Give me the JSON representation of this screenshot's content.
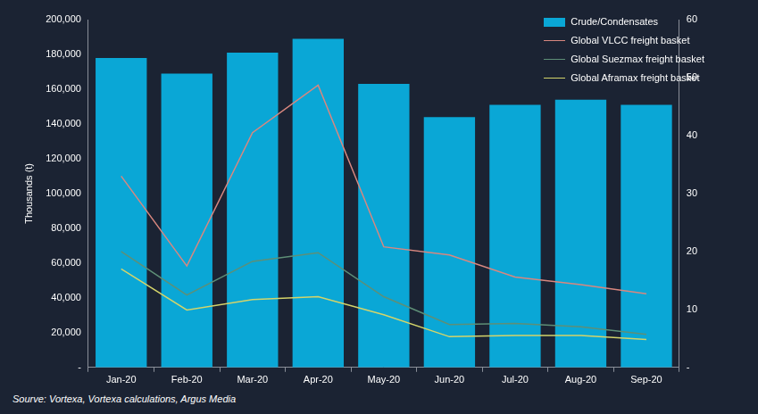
{
  "chart_data": {
    "type": "bar",
    "source": "Sourve: Vortexa, Vortexa calculations, Argus Media",
    "y_label": "Thousands (t)",
    "categories": [
      "Jan-20",
      "Feb-20",
      "Mar-20",
      "Apr-20",
      "May-20",
      "Jun-20",
      "Jul-20",
      "Aug-20",
      "Sep-20"
    ],
    "series": [
      {
        "name": "Crude/Condensates",
        "type": "bar",
        "color": "#0aa7d6",
        "values": [
          178000,
          169000,
          181000,
          189000,
          163000,
          144000,
          151000,
          154000,
          151000
        ]
      },
      {
        "name": "Global VLCC freight basket",
        "type": "line",
        "axis": "y2",
        "color": "#d9877f",
        "values": [
          33,
          17.5,
          40.5,
          48.7,
          20.8,
          19.4,
          15.6,
          14.3,
          12.7
        ]
      },
      {
        "name": "Global Suezmax freight basket",
        "type": "line",
        "axis": "y2",
        "color": "#5e8f77",
        "values": [
          20,
          12.5,
          18.3,
          19.8,
          12.2,
          7.4,
          7.6,
          7,
          5.7
        ]
      },
      {
        "name": "Global Aframax freight basket",
        "type": "line",
        "axis": "y2",
        "color": "#d4d46a",
        "values": [
          17,
          9.9,
          11.7,
          12.2,
          9.1,
          5.3,
          5.5,
          5.5,
          4.8
        ]
      }
    ],
    "ylim": [
      0,
      200000
    ],
    "yticks": [
      {
        "value": 0,
        "label": "-"
      },
      {
        "value": 20000,
        "label": "20,000"
      },
      {
        "value": 40000,
        "label": "40,000"
      },
      {
        "value": 60000,
        "label": "60,000"
      },
      {
        "value": 80000,
        "label": "80,000"
      },
      {
        "value": 100000,
        "label": "100,000"
      },
      {
        "value": 120000,
        "label": "120,000"
      },
      {
        "value": 140000,
        "label": "140,000"
      },
      {
        "value": 160000,
        "label": "160,000"
      },
      {
        "value": 180000,
        "label": "180,000"
      },
      {
        "value": 200000,
        "label": "200,000"
      }
    ],
    "y2lim": [
      0,
      60
    ],
    "y2ticks": [
      {
        "value": 0,
        "label": "-"
      },
      10,
      20,
      30,
      40,
      50,
      60
    ],
    "grid": false,
    "legend": "upper right"
  }
}
